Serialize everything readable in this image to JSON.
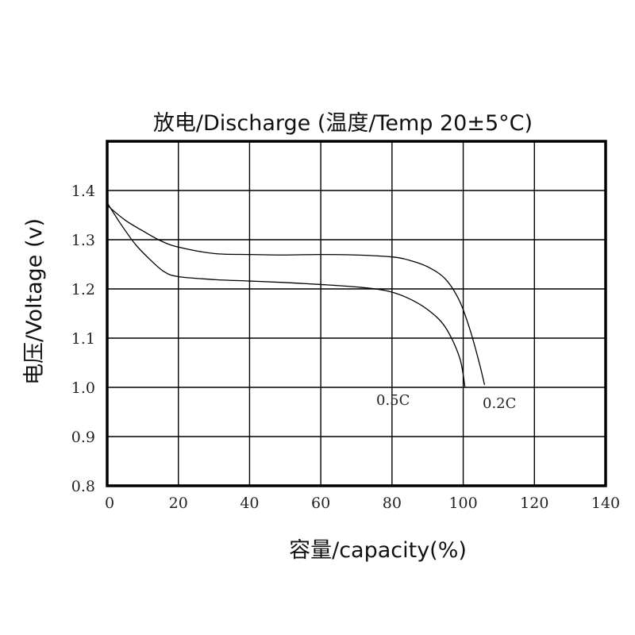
{
  "chart_data": {
    "type": "line",
    "title": "放电/Discharge (温度/Temp 20±5°C)",
    "xlabel": "容量/capacity(%)",
    "ylabel": "电压/Voltage (v)",
    "xlim": [
      0,
      140
    ],
    "ylim": [
      0.8,
      1.5
    ],
    "x_ticks": [
      "0",
      "20",
      "40",
      "60",
      "80",
      "100",
      "120",
      "140"
    ],
    "y_ticks": [
      "0.8",
      "0.9",
      "1.0",
      "1.1",
      "1.2",
      "1.3",
      "1.4"
    ],
    "grid": true,
    "series": [
      {
        "name": "0.5C",
        "x": [
          0,
          4,
          8,
          12,
          16,
          20,
          30,
          40,
          50,
          60,
          70,
          78,
          84,
          90,
          95,
          99,
          100.5
        ],
        "y": [
          1.375,
          1.33,
          1.29,
          1.26,
          1.235,
          1.225,
          1.219,
          1.216,
          1.213,
          1.209,
          1.204,
          1.197,
          1.183,
          1.158,
          1.122,
          1.06,
          1.0
        ]
      },
      {
        "name": "0.2C",
        "x": [
          0,
          5,
          10,
          15,
          20,
          30,
          40,
          50,
          60,
          70,
          80,
          85,
          90,
          95,
          99,
          102,
          104.5,
          106
        ],
        "y": [
          1.37,
          1.34,
          1.318,
          1.298,
          1.285,
          1.272,
          1.27,
          1.269,
          1.27,
          1.269,
          1.265,
          1.258,
          1.245,
          1.22,
          1.175,
          1.115,
          1.05,
          1.005
        ]
      }
    ]
  }
}
